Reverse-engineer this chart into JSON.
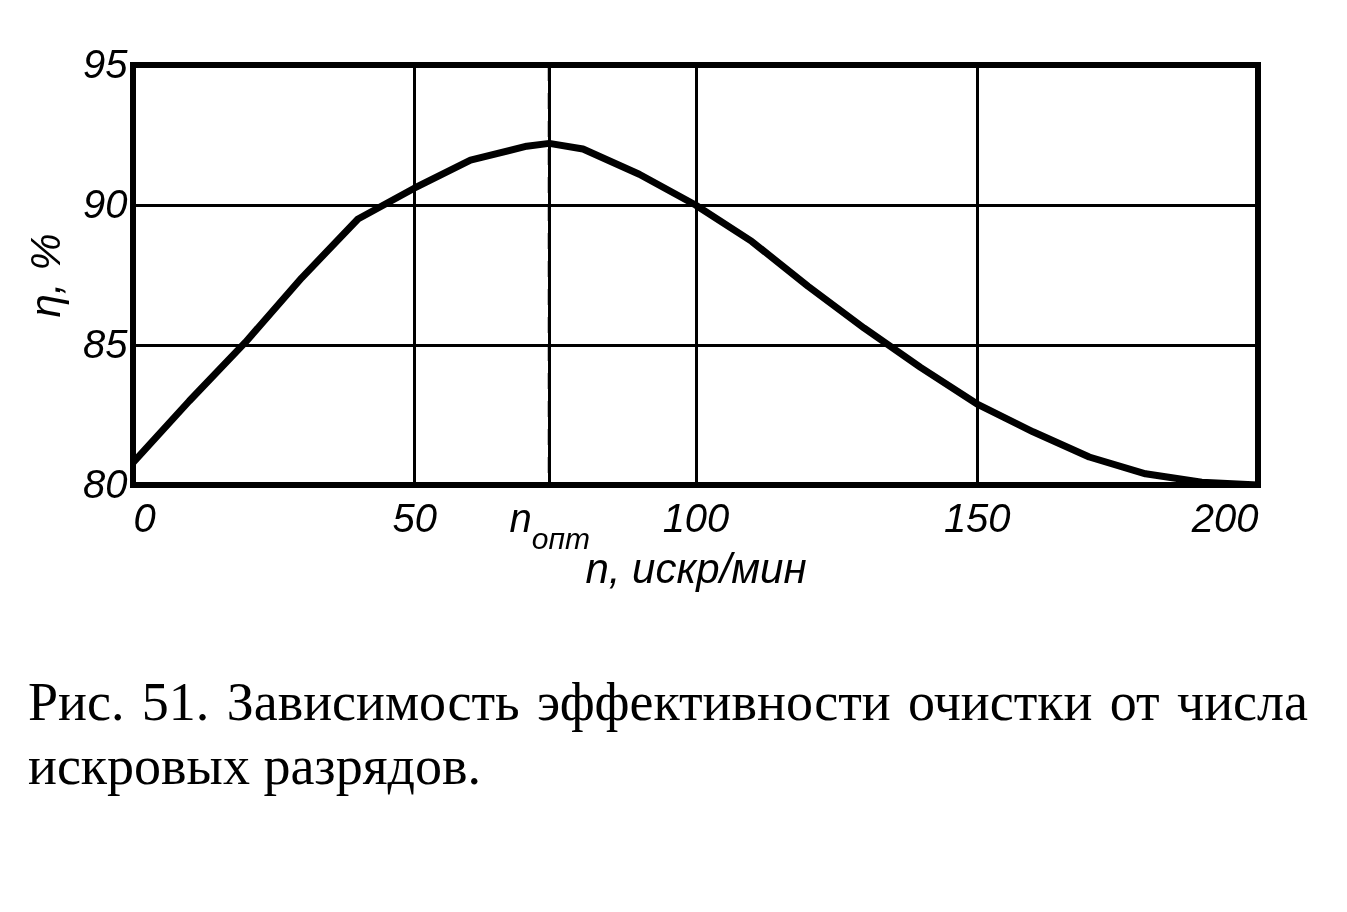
{
  "chart_data": {
    "type": "line",
    "xlabel": "n, искр/мин",
    "ylabel": "η, %",
    "x": [
      0,
      10,
      20,
      30,
      40,
      50,
      60,
      70,
      74,
      80,
      90,
      100,
      110,
      120,
      130,
      140,
      150,
      160,
      170,
      180,
      190,
      200
    ],
    "series": [
      {
        "color": "#000000",
        "values": [
          80.8,
          83.0,
          85.1,
          87.4,
          89.5,
          90.6,
          91.6,
          92.1,
          92.2,
          92.0,
          91.1,
          90.0,
          88.7,
          87.1,
          85.6,
          84.2,
          82.9,
          81.9,
          81.0,
          80.4,
          80.1,
          80.0
        ]
      }
    ],
    "xlim": [
      0,
      200
    ],
    "ylim": [
      80,
      95
    ],
    "xticks": [
      0,
      50,
      {
        "value": 74,
        "label": "n$_{опт}$"
      },
      100,
      150,
      200
    ],
    "yticks": [
      80,
      85,
      90,
      95
    ],
    "ref_lines": [
      {
        "axis": "x",
        "value": 74,
        "line_style": "dashed",
        "color": "#000000"
      }
    ],
    "grid": true,
    "line_style": "solid",
    "marker": "none",
    "annotations": [
      "Рис. 51. Зависимость эффективности очистки от числа искровых разрядов."
    ]
  }
}
